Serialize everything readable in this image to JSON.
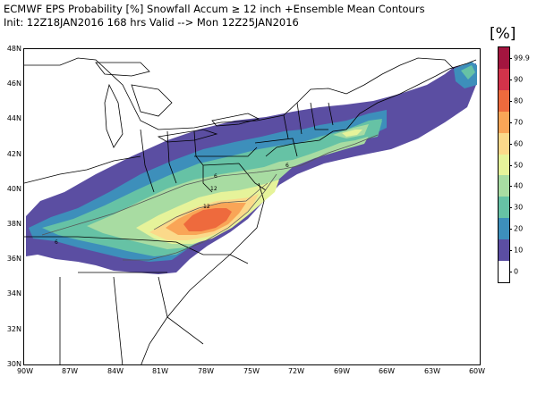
{
  "header": {
    "line1": "ECMWF EPS Probability [%] Snowfall Accum ≥ 12 inch   +Ensemble Mean Contours",
    "line2": "Init: 12Z18JAN2016   168 hrs Valid --> Mon 12Z25JAN2016"
  },
  "colorbar": {
    "unit": "[%]",
    "levels": [
      {
        "label": "99.9",
        "color": "#a3153f"
      },
      {
        "label": "90",
        "color": "#d2334a"
      },
      {
        "label": "80",
        "color": "#ee6a3d"
      },
      {
        "label": "70",
        "color": "#f9a557"
      },
      {
        "label": "60",
        "color": "#fbd98a"
      },
      {
        "label": "50",
        "color": "#e6f39a"
      },
      {
        "label": "40",
        "color": "#a8dca2"
      },
      {
        "label": "30",
        "color": "#66c2a5"
      },
      {
        "label": "20",
        "color": "#3d8fbb"
      },
      {
        "label": "10",
        "color": "#5b4ea2"
      },
      {
        "label": "0",
        "color": "#ffffff"
      }
    ]
  },
  "axes": {
    "lat_labels": [
      "48N",
      "46N",
      "44N",
      "42N",
      "40N",
      "38N",
      "36N",
      "34N",
      "32N",
      "30N"
    ],
    "lon_labels": [
      "90W",
      "87W",
      "84W",
      "81W",
      "78W",
      "75W",
      "72W",
      "69W",
      "66W",
      "63W",
      "60W"
    ],
    "lon_range": [
      -90,
      -60
    ],
    "lat_range": [
      30,
      48
    ]
  },
  "contours": {
    "labels": [
      "6",
      "12",
      "6",
      "6",
      "12"
    ]
  },
  "map": {
    "region": "Eastern United States and Atlantic Canada",
    "land_color": "#ffffff",
    "border_color": "#000000"
  }
}
